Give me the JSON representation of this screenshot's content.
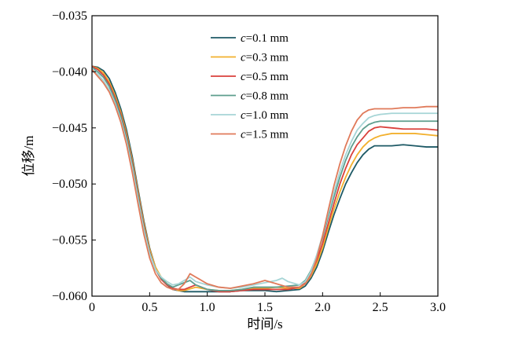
{
  "chart_data": {
    "type": "line",
    "title": "",
    "xlabel": "时间/s",
    "ylabel": "位移/m",
    "xlim": [
      0,
      3.0
    ],
    "ylim": [
      -0.06,
      -0.035
    ],
    "xticks": [
      0,
      0.5,
      1.0,
      1.5,
      2.0,
      2.5,
      3.0
    ],
    "xtick_labels": [
      "0",
      "0.5",
      "1.0",
      "1.5",
      "2.0",
      "2.5",
      "3.0"
    ],
    "yticks": [
      -0.06,
      -0.055,
      -0.05,
      -0.045,
      -0.04,
      -0.035
    ],
    "ytick_labels": [
      "−0.060",
      "−0.055",
      "−0.050",
      "−0.045",
      "−0.040",
      "−0.035"
    ],
    "grid": false,
    "legend_position": "top-center",
    "series": [
      {
        "name": "c=0.1 mm",
        "color": "#1e5a66",
        "x": [
          0,
          0.05,
          0.1,
          0.15,
          0.2,
          0.25,
          0.3,
          0.35,
          0.4,
          0.45,
          0.5,
          0.55,
          0.6,
          0.65,
          0.7,
          0.75,
          0.8,
          0.9,
          1.0,
          1.1,
          1.2,
          1.3,
          1.4,
          1.5,
          1.6,
          1.7,
          1.8,
          1.85,
          1.9,
          1.95,
          2.0,
          2.05,
          2.1,
          2.15,
          2.2,
          2.25,
          2.3,
          2.35,
          2.4,
          2.45,
          2.5,
          2.6,
          2.7,
          2.8,
          2.9,
          3.0
        ],
        "y": [
          -0.0395,
          -0.0396,
          -0.0399,
          -0.0406,
          -0.0418,
          -0.0433,
          -0.0452,
          -0.0476,
          -0.0505,
          -0.0533,
          -0.0557,
          -0.0574,
          -0.0584,
          -0.059,
          -0.0594,
          -0.0595,
          -0.0596,
          -0.0596,
          -0.0596,
          -0.0596,
          -0.0596,
          -0.0595,
          -0.0595,
          -0.0595,
          -0.0596,
          -0.0595,
          -0.0594,
          -0.0591,
          -0.0584,
          -0.0574,
          -0.056,
          -0.0543,
          -0.0527,
          -0.0513,
          -0.05,
          -0.049,
          -0.0481,
          -0.0474,
          -0.0469,
          -0.0466,
          -0.0466,
          -0.0466,
          -0.0465,
          -0.0466,
          -0.0467,
          -0.0467
        ]
      },
      {
        "name": "c=0.3 mm",
        "color": "#f2b02e",
        "x": [
          0,
          0.05,
          0.1,
          0.15,
          0.2,
          0.25,
          0.3,
          0.35,
          0.4,
          0.45,
          0.5,
          0.55,
          0.6,
          0.65,
          0.7,
          0.75,
          0.8,
          0.9,
          1.0,
          1.1,
          1.2,
          1.3,
          1.4,
          1.5,
          1.6,
          1.7,
          1.8,
          1.85,
          1.9,
          1.95,
          2.0,
          2.05,
          2.1,
          2.15,
          2.2,
          2.25,
          2.3,
          2.35,
          2.4,
          2.45,
          2.5,
          2.6,
          2.7,
          2.8,
          2.9,
          3.0
        ],
        "y": [
          -0.0395,
          -0.0397,
          -0.0401,
          -0.0409,
          -0.0421,
          -0.0436,
          -0.0455,
          -0.0479,
          -0.0507,
          -0.0535,
          -0.0558,
          -0.0574,
          -0.0583,
          -0.0589,
          -0.0593,
          -0.0595,
          -0.0595,
          -0.0592,
          -0.0594,
          -0.0595,
          -0.0595,
          -0.0594,
          -0.0593,
          -0.0593,
          -0.0592,
          -0.0593,
          -0.0593,
          -0.0589,
          -0.0582,
          -0.0571,
          -0.0557,
          -0.0539,
          -0.0522,
          -0.0507,
          -0.0494,
          -0.0483,
          -0.0474,
          -0.0467,
          -0.0462,
          -0.0459,
          -0.0457,
          -0.0455,
          -0.0455,
          -0.0455,
          -0.0456,
          -0.0457
        ]
      },
      {
        "name": "c=0.5 mm",
        "color": "#d9403b",
        "x": [
          0,
          0.05,
          0.1,
          0.15,
          0.2,
          0.25,
          0.3,
          0.35,
          0.4,
          0.45,
          0.5,
          0.55,
          0.6,
          0.65,
          0.7,
          0.75,
          0.8,
          0.9,
          1.0,
          1.1,
          1.2,
          1.3,
          1.4,
          1.5,
          1.6,
          1.7,
          1.8,
          1.85,
          1.9,
          1.95,
          2.0,
          2.05,
          2.1,
          2.15,
          2.2,
          2.25,
          2.3,
          2.35,
          2.4,
          2.45,
          2.5,
          2.6,
          2.7,
          2.8,
          2.9,
          3.0
        ],
        "y": [
          -0.0395,
          -0.0398,
          -0.0403,
          -0.0411,
          -0.0423,
          -0.0438,
          -0.0457,
          -0.0481,
          -0.0509,
          -0.0537,
          -0.056,
          -0.0576,
          -0.0585,
          -0.059,
          -0.0593,
          -0.0594,
          -0.0594,
          -0.059,
          -0.0594,
          -0.0596,
          -0.0596,
          -0.0595,
          -0.0594,
          -0.0594,
          -0.0594,
          -0.0594,
          -0.0592,
          -0.0588,
          -0.058,
          -0.0568,
          -0.0553,
          -0.0535,
          -0.0517,
          -0.05,
          -0.0486,
          -0.0474,
          -0.0465,
          -0.0459,
          -0.0453,
          -0.045,
          -0.0449,
          -0.045,
          -0.0451,
          -0.0451,
          -0.0451,
          -0.0452
        ]
      },
      {
        "name": "c=0.8 mm",
        "color": "#5e9e8e",
        "x": [
          0,
          0.05,
          0.1,
          0.15,
          0.2,
          0.25,
          0.3,
          0.35,
          0.4,
          0.45,
          0.5,
          0.55,
          0.6,
          0.65,
          0.7,
          0.75,
          0.8,
          0.85,
          0.9,
          1.0,
          1.1,
          1.2,
          1.3,
          1.4,
          1.5,
          1.6,
          1.7,
          1.8,
          1.85,
          1.9,
          1.95,
          2.0,
          2.05,
          2.1,
          2.15,
          2.2,
          2.25,
          2.3,
          2.35,
          2.4,
          2.45,
          2.5,
          2.6,
          2.7,
          2.8,
          2.9,
          3.0
        ],
        "y": [
          -0.0396,
          -0.04,
          -0.0405,
          -0.0413,
          -0.0425,
          -0.044,
          -0.0459,
          -0.0483,
          -0.0511,
          -0.0539,
          -0.0561,
          -0.0576,
          -0.0584,
          -0.0589,
          -0.0592,
          -0.059,
          -0.0588,
          -0.0586,
          -0.059,
          -0.0594,
          -0.0595,
          -0.0595,
          -0.0594,
          -0.0592,
          -0.0592,
          -0.0592,
          -0.0591,
          -0.059,
          -0.0586,
          -0.0577,
          -0.0564,
          -0.0548,
          -0.0529,
          -0.0511,
          -0.0494,
          -0.0479,
          -0.0467,
          -0.0458,
          -0.0451,
          -0.0447,
          -0.0445,
          -0.0444,
          -0.0444,
          -0.0444,
          -0.0444,
          -0.0444,
          -0.0444
        ]
      },
      {
        "name": "c=1.0 mm",
        "color": "#a6d5d6",
        "x": [
          0,
          0.05,
          0.1,
          0.15,
          0.2,
          0.25,
          0.3,
          0.35,
          0.4,
          0.45,
          0.5,
          0.55,
          0.6,
          0.65,
          0.7,
          0.75,
          0.8,
          0.85,
          0.9,
          1.0,
          1.1,
          1.2,
          1.3,
          1.4,
          1.5,
          1.6,
          1.65,
          1.7,
          1.8,
          1.85,
          1.9,
          1.95,
          2.0,
          2.05,
          2.1,
          2.15,
          2.2,
          2.25,
          2.3,
          2.35,
          2.4,
          2.45,
          2.5,
          2.6,
          2.7,
          2.8,
          2.9,
          3.0
        ],
        "y": [
          -0.0397,
          -0.0402,
          -0.0408,
          -0.0416,
          -0.0428,
          -0.0443,
          -0.0462,
          -0.0486,
          -0.0514,
          -0.0541,
          -0.0562,
          -0.0576,
          -0.0583,
          -0.0587,
          -0.059,
          -0.0589,
          -0.0586,
          -0.0583,
          -0.0587,
          -0.059,
          -0.0592,
          -0.0593,
          -0.0592,
          -0.059,
          -0.0588,
          -0.0586,
          -0.0584,
          -0.0587,
          -0.059,
          -0.0587,
          -0.0578,
          -0.0563,
          -0.0546,
          -0.0526,
          -0.0507,
          -0.0489,
          -0.0474,
          -0.0462,
          -0.0452,
          -0.0446,
          -0.0441,
          -0.0439,
          -0.0438,
          -0.0437,
          -0.0437,
          -0.0437,
          -0.0437,
          -0.0437
        ]
      },
      {
        "name": "c=1.5 mm",
        "color": "#e07a5a",
        "x": [
          0,
          0.05,
          0.1,
          0.15,
          0.2,
          0.25,
          0.3,
          0.35,
          0.4,
          0.45,
          0.5,
          0.55,
          0.6,
          0.65,
          0.7,
          0.75,
          0.8,
          0.85,
          0.9,
          1.0,
          1.1,
          1.2,
          1.3,
          1.4,
          1.5,
          1.6,
          1.7,
          1.8,
          1.85,
          1.9,
          1.95,
          2.0,
          2.05,
          2.1,
          2.15,
          2.2,
          2.25,
          2.3,
          2.35,
          2.4,
          2.45,
          2.5,
          2.6,
          2.7,
          2.8,
          2.9,
          3.0
        ],
        "y": [
          -0.0398,
          -0.0404,
          -0.041,
          -0.0418,
          -0.043,
          -0.0445,
          -0.0465,
          -0.049,
          -0.0518,
          -0.0545,
          -0.0566,
          -0.058,
          -0.0588,
          -0.0592,
          -0.0594,
          -0.0594,
          -0.0589,
          -0.058,
          -0.0583,
          -0.0589,
          -0.0592,
          -0.0593,
          -0.0591,
          -0.0589,
          -0.0586,
          -0.0589,
          -0.0592,
          -0.0592,
          -0.0589,
          -0.0581,
          -0.0566,
          -0.0546,
          -0.0523,
          -0.0501,
          -0.0482,
          -0.0466,
          -0.0453,
          -0.0443,
          -0.0437,
          -0.0434,
          -0.0433,
          -0.0433,
          -0.0433,
          -0.0432,
          -0.0432,
          -0.0431,
          -0.0431
        ]
      }
    ]
  }
}
